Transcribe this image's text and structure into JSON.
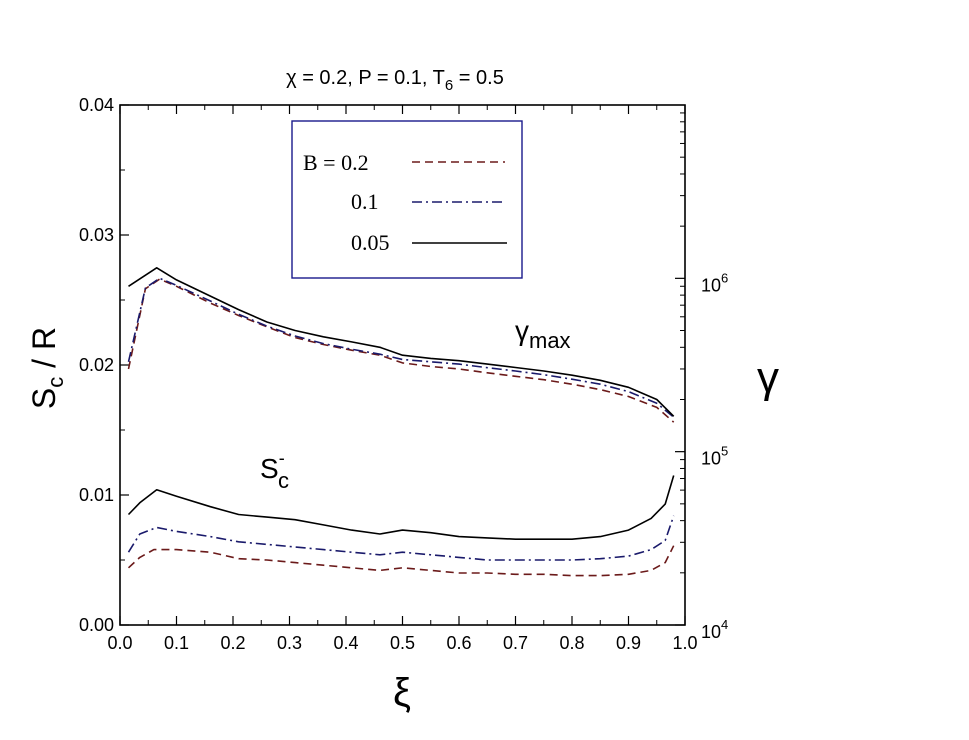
{
  "chart_data": {
    "type": "line",
    "title": {
      "prefix": "χ = 0.2, P = 0.1,  T",
      "sub": "6",
      "suffix": " = 0.5"
    },
    "xlabel": "ξ",
    "ylabel_left": {
      "main": "S",
      "sub": "c",
      "suffix": " / R"
    },
    "ylabel_right": "γ",
    "xlim": [
      0.0,
      1.0
    ],
    "ylim_left": [
      0.0,
      0.04
    ],
    "ylim_right": [
      10000,
      10000000
    ],
    "y_right_scale": "log",
    "x_ticks": [
      "0.0",
      "0.1",
      "0.2",
      "0.3",
      "0.4",
      "0.5",
      "0.6",
      "0.7",
      "0.8",
      "0.9",
      "1.0"
    ],
    "y_left_ticks": [
      "0.00",
      "0.01",
      "0.02",
      "0.03",
      "0.04"
    ],
    "y_right_ticks": [
      {
        "value": 10000,
        "base": "10",
        "exp": "4"
      },
      {
        "value": 100000,
        "base": "10",
        "exp": "5"
      },
      {
        "value": 1000000,
        "base": "10",
        "exp": "6"
      }
    ],
    "legend": {
      "placement": "top-center",
      "entries": [
        {
          "label": "B = 0.2",
          "style": "dashed",
          "color": "#6b1a1a"
        },
        {
          "label": "0.1",
          "style": "dashdot",
          "color": "#1a1a6b"
        },
        {
          "label": "0.05",
          "style": "solid",
          "color": "#000000"
        }
      ]
    },
    "annotations": [
      {
        "id": "gamma",
        "main": "γ",
        "sub": "max"
      },
      {
        "id": "sc",
        "main": "S",
        "sup": "-",
        "sub": "c"
      }
    ],
    "series": [
      {
        "group": "gamma_max",
        "axis": "right",
        "B": "0.2",
        "style": "dashed",
        "color": "#6b1a1a",
        "x": [
          0.015,
          0.045,
          0.07,
          0.1,
          0.16,
          0.21,
          0.26,
          0.31,
          0.36,
          0.41,
          0.46,
          0.5,
          0.55,
          0.6,
          0.65,
          0.7,
          0.75,
          0.8,
          0.85,
          0.9,
          0.95,
          0.98
        ],
        "values": [
          300000,
          870000,
          990000,
          900000,
          720000,
          610000,
          525000,
          455000,
          415000,
          385000,
          360000,
          325000,
          310000,
          300000,
          285000,
          272000,
          260000,
          245000,
          228000,
          208000,
          180000,
          148000
        ]
      },
      {
        "group": "gamma_max",
        "axis": "right",
        "B": "0.1",
        "style": "dashdot",
        "color": "#1a1a6b",
        "x": [
          0.015,
          0.045,
          0.07,
          0.1,
          0.16,
          0.21,
          0.26,
          0.31,
          0.36,
          0.41,
          0.46,
          0.5,
          0.55,
          0.6,
          0.65,
          0.7,
          0.75,
          0.8,
          0.85,
          0.9,
          0.95,
          0.98
        ],
        "values": [
          330000,
          880000,
          1000000,
          910000,
          740000,
          620000,
          530000,
          465000,
          420000,
          390000,
          365000,
          340000,
          330000,
          320000,
          305000,
          292000,
          278000,
          262000,
          245000,
          222000,
          190000,
          158000
        ]
      },
      {
        "group": "gamma_max",
        "axis": "right",
        "B": "0.05",
        "style": "solid",
        "color": "#000000",
        "x": [
          0.015,
          0.065,
          0.1,
          0.16,
          0.21,
          0.26,
          0.31,
          0.36,
          0.41,
          0.46,
          0.5,
          0.55,
          0.6,
          0.65,
          0.7,
          0.75,
          0.8,
          0.85,
          0.9,
          0.95,
          0.98
        ],
        "values": [
          900000,
          1150000,
          980000,
          790000,
          660000,
          560000,
          500000,
          460000,
          430000,
          400000,
          360000,
          345000,
          335000,
          320000,
          306000,
          292000,
          276000,
          258000,
          235000,
          200000,
          160000
        ]
      },
      {
        "group": "S_c",
        "axis": "left",
        "B": "0.2",
        "style": "dashed",
        "color": "#6b1a1a",
        "x": [
          0.015,
          0.035,
          0.06,
          0.1,
          0.16,
          0.21,
          0.26,
          0.31,
          0.36,
          0.41,
          0.46,
          0.5,
          0.55,
          0.6,
          0.65,
          0.7,
          0.75,
          0.8,
          0.85,
          0.9,
          0.94,
          0.965,
          0.98
        ],
        "values": [
          0.0044,
          0.0052,
          0.0058,
          0.0058,
          0.0056,
          0.0051,
          0.005,
          0.0048,
          0.0046,
          0.0044,
          0.0042,
          0.0044,
          0.0042,
          0.004,
          0.004,
          0.0039,
          0.0039,
          0.0038,
          0.0038,
          0.0039,
          0.0042,
          0.0048,
          0.0061
        ]
      },
      {
        "group": "S_c",
        "axis": "left",
        "B": "0.1",
        "style": "dashdot",
        "color": "#1a1a6b",
        "x": [
          0.015,
          0.035,
          0.065,
          0.1,
          0.16,
          0.21,
          0.26,
          0.31,
          0.36,
          0.41,
          0.46,
          0.5,
          0.55,
          0.6,
          0.65,
          0.7,
          0.75,
          0.8,
          0.85,
          0.9,
          0.94,
          0.965,
          0.98
        ],
        "values": [
          0.0056,
          0.007,
          0.0075,
          0.0072,
          0.0068,
          0.0064,
          0.0062,
          0.006,
          0.0058,
          0.0056,
          0.0054,
          0.0056,
          0.0054,
          0.0052,
          0.005,
          0.005,
          0.005,
          0.005,
          0.0051,
          0.0053,
          0.0058,
          0.0065,
          0.0084
        ]
      },
      {
        "group": "S_c",
        "axis": "left",
        "B": "0.05",
        "style": "solid",
        "color": "#000000",
        "x": [
          0.015,
          0.035,
          0.065,
          0.1,
          0.16,
          0.21,
          0.26,
          0.31,
          0.36,
          0.41,
          0.46,
          0.5,
          0.55,
          0.6,
          0.65,
          0.7,
          0.75,
          0.8,
          0.85,
          0.9,
          0.94,
          0.965,
          0.98
        ],
        "values": [
          0.0085,
          0.0094,
          0.0104,
          0.0099,
          0.0091,
          0.0085,
          0.0083,
          0.0081,
          0.0077,
          0.0073,
          0.007,
          0.0073,
          0.0071,
          0.0068,
          0.0067,
          0.0066,
          0.0066,
          0.0066,
          0.0068,
          0.0073,
          0.0082,
          0.0093,
          0.0115
        ]
      }
    ]
  }
}
